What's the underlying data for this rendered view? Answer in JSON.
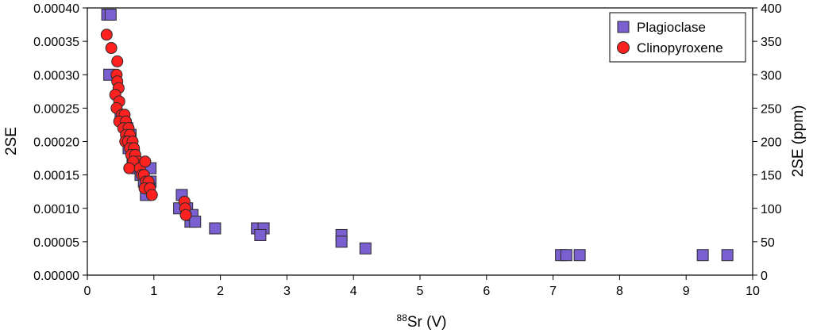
{
  "chart_data": {
    "type": "scatter",
    "xlabel_sup": "88",
    "xlabel_main": "Sr (V)",
    "ylabel": "2SE",
    "ylabel_right": "2SE (ppm)",
    "xlim": [
      0,
      10
    ],
    "ylim": [
      0,
      0.0004
    ],
    "ylim_right": [
      0,
      400
    ],
    "x_ticks": [
      0,
      1,
      2,
      3,
      4,
      5,
      6,
      7,
      8,
      9,
      10
    ],
    "x_tick_labels": [
      "0",
      "1",
      "2",
      "3",
      "4",
      "5",
      "6",
      "7",
      "8",
      "9",
      "10"
    ],
    "y_ticks": [
      0,
      5e-05,
      0.0001,
      0.00015,
      0.0002,
      0.00025,
      0.0003,
      0.00035,
      0.0004
    ],
    "y_tick_labels": [
      "0.00000",
      "0.00005",
      "0.00010",
      "0.00015",
      "0.00020",
      "0.00025",
      "0.00030",
      "0.00035",
      "0.00040"
    ],
    "y_right_ticks": [
      0,
      50,
      100,
      150,
      200,
      250,
      300,
      350,
      400
    ],
    "y_right_tick_labels": [
      "0",
      "50",
      "100",
      "150",
      "200",
      "250",
      "300",
      "350",
      "400"
    ],
    "grid": false,
    "legend_position": "top-right",
    "series": [
      {
        "name": "Plagioclase",
        "marker": "square",
        "color": "#7a5fd0",
        "points": [
          [
            0.3,
            0.00039
          ],
          [
            0.35,
            0.00039
          ],
          [
            0.33,
            0.0003
          ],
          [
            0.5,
            0.00024
          ],
          [
            0.55,
            0.00023
          ],
          [
            0.6,
            0.00022
          ],
          [
            0.65,
            0.00021
          ],
          [
            0.62,
            0.00019
          ],
          [
            0.7,
            0.00018
          ],
          [
            0.68,
            0.00017
          ],
          [
            0.75,
            0.00016
          ],
          [
            0.8,
            0.00015
          ],
          [
            0.85,
            0.00014
          ],
          [
            0.9,
            0.00014
          ],
          [
            0.95,
            0.00016
          ],
          [
            0.95,
            0.00014
          ],
          [
            0.9,
            0.00013
          ],
          [
            0.88,
            0.00012
          ],
          [
            0.93,
            0.00013
          ],
          [
            1.38,
            0.0001
          ],
          [
            1.42,
            0.00012
          ],
          [
            1.5,
            0.0001
          ],
          [
            1.55,
            8e-05
          ],
          [
            1.58,
            9e-05
          ],
          [
            1.62,
            8e-05
          ],
          [
            1.92,
            7e-05
          ],
          [
            2.55,
            7e-05
          ],
          [
            2.65,
            7e-05
          ],
          [
            2.6,
            6e-05
          ],
          [
            3.82,
            6e-05
          ],
          [
            3.82,
            5e-05
          ],
          [
            4.18,
            4e-05
          ],
          [
            7.12,
            3e-05
          ],
          [
            7.2,
            3e-05
          ],
          [
            7.4,
            3e-05
          ],
          [
            9.25,
            3e-05
          ],
          [
            9.62,
            3e-05
          ]
        ]
      },
      {
        "name": "Clinopyroxene",
        "marker": "circle",
        "color": "#ff2020",
        "points": [
          [
            0.29,
            0.00036
          ],
          [
            0.36,
            0.00034
          ],
          [
            0.45,
            0.00032
          ],
          [
            0.44,
            0.0003
          ],
          [
            0.45,
            0.00029
          ],
          [
            0.47,
            0.00028
          ],
          [
            0.42,
            0.00027
          ],
          [
            0.48,
            0.00026
          ],
          [
            0.44,
            0.00025
          ],
          [
            0.52,
            0.00024
          ],
          [
            0.56,
            0.00024
          ],
          [
            0.48,
            0.00023
          ],
          [
            0.58,
            0.00023
          ],
          [
            0.54,
            0.00022
          ],
          [
            0.62,
            0.00022
          ],
          [
            0.58,
            0.00021
          ],
          [
            0.64,
            0.00021
          ],
          [
            0.57,
            0.0002
          ],
          [
            0.61,
            0.0002
          ],
          [
            0.68,
            0.0002
          ],
          [
            0.64,
            0.00019
          ],
          [
            0.7,
            0.00019
          ],
          [
            0.66,
            0.00018
          ],
          [
            0.72,
            0.00018
          ],
          [
            0.76,
            0.00017
          ],
          [
            0.69,
            0.00017
          ],
          [
            0.63,
            0.00016
          ],
          [
            0.79,
            0.00016
          ],
          [
            0.82,
            0.00015
          ],
          [
            0.85,
            0.00015
          ],
          [
            0.88,
            0.00014
          ],
          [
            0.92,
            0.00014
          ],
          [
            0.87,
            0.00017
          ],
          [
            0.86,
            0.00013
          ],
          [
            0.94,
            0.00013
          ],
          [
            0.97,
            0.00012
          ],
          [
            1.46,
            0.00011
          ],
          [
            1.47,
            0.0001
          ],
          [
            1.48,
            9e-05
          ]
        ]
      }
    ]
  }
}
